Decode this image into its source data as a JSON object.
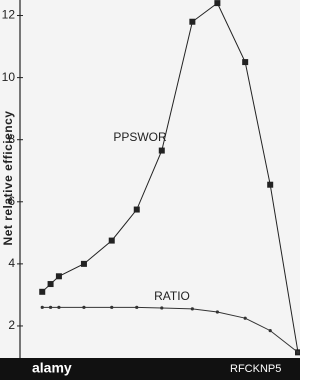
{
  "chart_data": {
    "type": "line",
    "y_label": "Net relative efficiency",
    "x": [
      0.08,
      0.11,
      0.14,
      0.23,
      0.33,
      0.42,
      0.51,
      0.62,
      0.71,
      0.81,
      0.9,
      1.0
    ],
    "xlim": [
      0,
      1
    ],
    "series": [
      {
        "name": "PPSWOR",
        "color": "#222222",
        "marker": "square",
        "values": [
          3.1,
          3.35,
          3.6,
          4.0,
          4.75,
          5.75,
          7.65,
          11.8,
          12.4,
          10.5,
          6.55,
          1.15
        ]
      },
      {
        "name": "RATIO",
        "color": "#333333",
        "marker": "dot",
        "values": [
          2.6,
          2.6,
          2.6,
          2.6,
          2.6,
          2.6,
          2.58,
          2.55,
          2.45,
          2.25,
          1.85,
          1.15
        ]
      }
    ],
    "ylim": [
      1,
      12.5
    ],
    "yticks": [
      2,
      4,
      6,
      8,
      10,
      12
    ],
    "grid": false
  },
  "watermark": {
    "brand": "alamy",
    "id": "RFCKNP5"
  }
}
